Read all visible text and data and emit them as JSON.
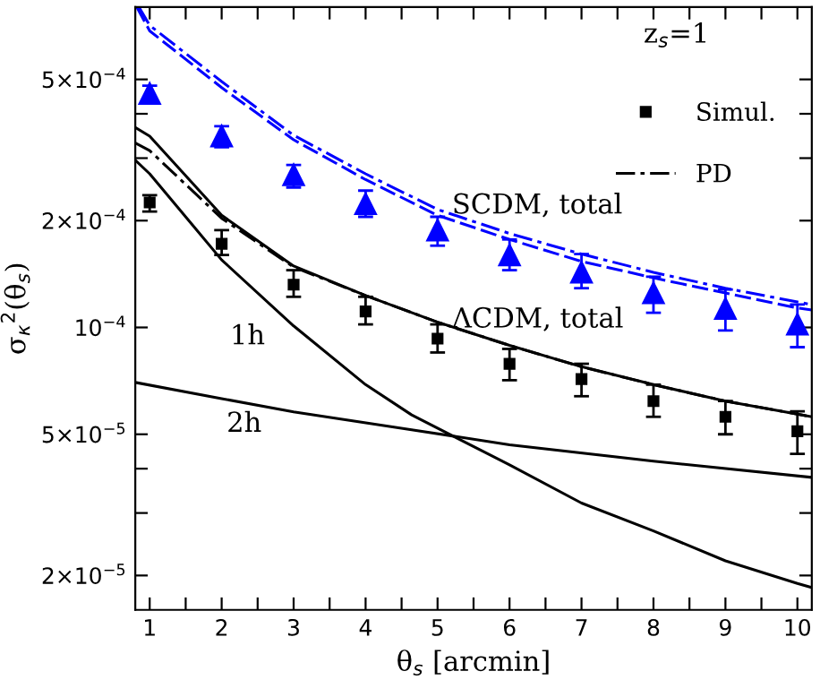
{
  "chart_data": {
    "type": "line",
    "xlabel": "θ$_{s}$ [arcmin]",
    "ylabel": "σ$_{κ}$$^{2}$(θ$_{s}$)",
    "log": "y",
    "xlim": [
      0.8,
      10.2
    ],
    "ylim": [
      1.6e-05,
      0.0008
    ],
    "xticks": [
      1,
      {
        "value": 1.5,
        "label": null
      },
      2,
      {
        "value": 2.5,
        "label": null
      },
      3,
      {
        "value": 3.5,
        "label": null
      },
      4,
      {
        "value": 4.5,
        "label": null
      },
      5,
      {
        "value": 5.5,
        "label": null
      },
      6,
      {
        "value": 6.5,
        "label": null
      },
      7,
      {
        "value": 7.5,
        "label": null
      },
      8,
      {
        "value": 8.5,
        "label": null
      },
      9,
      {
        "value": 9.5,
        "label": null
      },
      10
    ],
    "yticks": [
      {
        "value": 2e-05,
        "label": "2×10$^{−5}$"
      },
      {
        "value": 3e-05,
        "label": null
      },
      {
        "value": 4e-05,
        "label": null
      },
      {
        "value": 5e-05,
        "label": "5×10$^{−5}$"
      },
      {
        "value": 0.0001,
        "label": "10$^{−4}$"
      },
      {
        "value": 0.0002,
        "label": "2×10$^{−4}$"
      },
      {
        "value": 0.0003,
        "label": null
      },
      {
        "value": 0.0004,
        "label": null
      },
      {
        "value": 0.0005,
        "label": "5×10$^{−4}$"
      }
    ],
    "grid": false,
    "legend": "top right",
    "annotations": [
      "z$_{s}$=1",
      {
        "text": "SCDM, total",
        "x": 5.2,
        "y": 0.00022
      },
      {
        "text": "ΛCDM, total",
        "x": 5.2,
        "y": 0.000105
      },
      "1h",
      "2h"
    ],
    "series": [
      {
        "color": "#000000",
        "line_style": "solid",
        "x": [
          0.8,
          1,
          2,
          3,
          4,
          5,
          6,
          7,
          8,
          9,
          10,
          10.2
        ],
        "values": [
          0.000366,
          0.000346,
          0.000207,
          0.000149,
          0.000123,
          0.0001035,
          8.9e-05,
          7.75e-05,
          6.9e-05,
          6.2e-05,
          5.7e-05,
          5.6e-05
        ]
      },
      {
        "name": "PD",
        "color": "#000000",
        "line_style": "dashdot",
        "x": [
          0.8,
          1,
          2,
          3,
          4,
          5,
          6,
          7,
          8,
          9,
          10,
          10.2
        ],
        "values": [
          0.000331,
          0.000315,
          0.000203,
          0.000148,
          0.000123,
          0.0001035,
          8.9e-05,
          7.75e-05,
          6.9e-05,
          6.2e-05,
          5.7e-05,
          5.6e-05
        ]
      },
      {
        "color": "#0000ff",
        "line_style": "dashed",
        "x": [
          0.82,
          1,
          2,
          3,
          4,
          5,
          6,
          7,
          8,
          9,
          10,
          10.2
        ],
        "values": [
          0.0008,
          0.000685,
          0.000474,
          0.000338,
          0.000261,
          0.000207,
          0.000177,
          0.0001535,
          0.000138,
          0.000125,
          0.0001135,
          0.000112
        ]
      },
      {
        "color": "#0000ff",
        "line_style": "dashdot",
        "x": [
          0.85,
          1,
          2,
          3,
          4,
          5,
          6,
          7,
          8,
          9,
          10,
          10.2
        ],
        "values": [
          0.0008,
          0.00071,
          0.000493,
          0.000348,
          0.000271,
          0.000215,
          0.000184,
          0.000161,
          0.000143,
          0.000129,
          0.000118,
          0.000116
        ]
      },
      {
        "color": "#000000",
        "line_style": "solid",
        "x": [
          0.8,
          1,
          2,
          3,
          4,
          4.64,
          6,
          7,
          8,
          9,
          10,
          10.2
        ],
        "values": [
          0.000296,
          0.000271,
          0.000155,
          0.000101,
          6.9e-05,
          5.67e-05,
          4.1e-05,
          3.2e-05,
          2.67e-05,
          2.2e-05,
          1.9e-05,
          1.85e-05
        ]
      },
      {
        "color": "#000000",
        "line_style": "solid",
        "x": [
          0.8,
          2,
          3,
          4.64,
          6,
          8,
          10.2
        ],
        "values": [
          7e-05,
          6.3e-05,
          5.78e-05,
          5.15e-05,
          4.67e-05,
          4.2e-05,
          3.78e-05
        ]
      },
      {
        "type": "scatter",
        "name": "Simul.",
        "color": "#000000",
        "marker": "square",
        "x": [
          1,
          2,
          3,
          4,
          5,
          6,
          7,
          8,
          9,
          10
        ],
        "values": [
          0.000225,
          0.000172,
          0.000132,
          0.000111,
          9.3e-05,
          7.9e-05,
          7.15e-05,
          6.2e-05,
          5.6e-05,
          5.1e-05
        ],
        "errors": [
          [
            0.000212,
            0.000236
          ],
          [
            0.00016,
            0.000188
          ],
          [
            0.000122,
            0.000145
          ],
          [
            0.000102,
            0.000122
          ],
          [
            8.5e-05,
            0.000102
          ],
          [
            7.1e-05,
            8.7e-05
          ],
          [
            6.4e-05,
            7.9e-05
          ],
          [
            5.6e-05,
            6.9e-05
          ],
          [
            5e-05,
            6.2e-05
          ],
          [
            4.4e-05,
            5.8e-05
          ]
        ]
      },
      {
        "type": "scatter",
        "color": "#0000ff",
        "marker": "triangle",
        "x": [
          1,
          2,
          3,
          4,
          5,
          6,
          7,
          8,
          9,
          10
        ],
        "values": [
          0.000456,
          0.000346,
          0.000269,
          0.000223,
          0.000188,
          0.00016,
          0.000143,
          0.000125,
          0.000113,
          0.000102
        ],
        "errors": [
          [
            0.00043,
            0.00048
          ],
          [
            0.000322,
            0.000369
          ],
          [
            0.000248,
            0.000287
          ],
          [
            0.000205,
            0.000243
          ],
          [
            0.00017,
            0.000205
          ],
          [
            0.000145,
            0.000177
          ],
          [
            0.000129,
            0.000161
          ],
          [
            0.00011,
            0.000139
          ],
          [
            9.8e-05,
            0.000128
          ],
          [
            8.8e-05,
            0.000116
          ]
        ]
      }
    ]
  }
}
